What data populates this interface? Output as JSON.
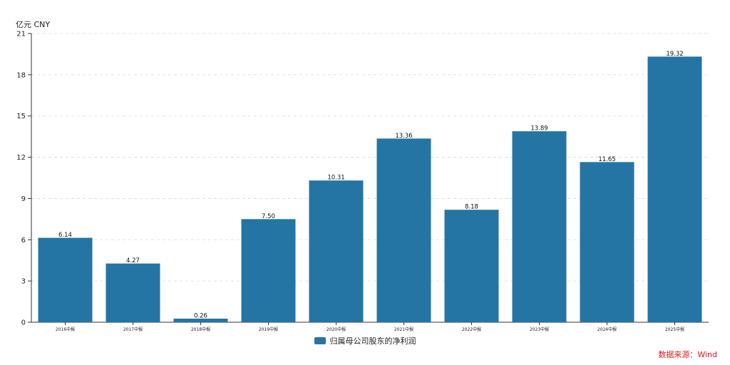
{
  "chart_data": {
    "type": "bar",
    "unit_label": "亿元  CNY",
    "categories": [
      "2016中报",
      "2017中报",
      "2018中报",
      "2019中报",
      "2020中报",
      "2021中报",
      "2022中报",
      "2023中报",
      "2024中报",
      "2025中报"
    ],
    "series": [
      {
        "name": "归属母公司股东的净利润",
        "values": [
          6.14,
          4.27,
          0.26,
          7.5,
          10.31,
          13.36,
          8.18,
          13.89,
          11.65,
          19.32
        ],
        "labels": [
          "6.14",
          "4.27",
          "0.26",
          "7.50",
          "10.31",
          "13.36",
          "8.18",
          "13.89",
          "11.65",
          "19.32"
        ]
      }
    ],
    "yticks": [
      0,
      3,
      6,
      9,
      12,
      15,
      18,
      21
    ],
    "ylim": [
      0,
      21
    ],
    "grid": true,
    "legend_position": "bottom-center",
    "bar_color": "#2475a4"
  },
  "source_text": "数据来源：Wind",
  "source_color": "#e0191b"
}
